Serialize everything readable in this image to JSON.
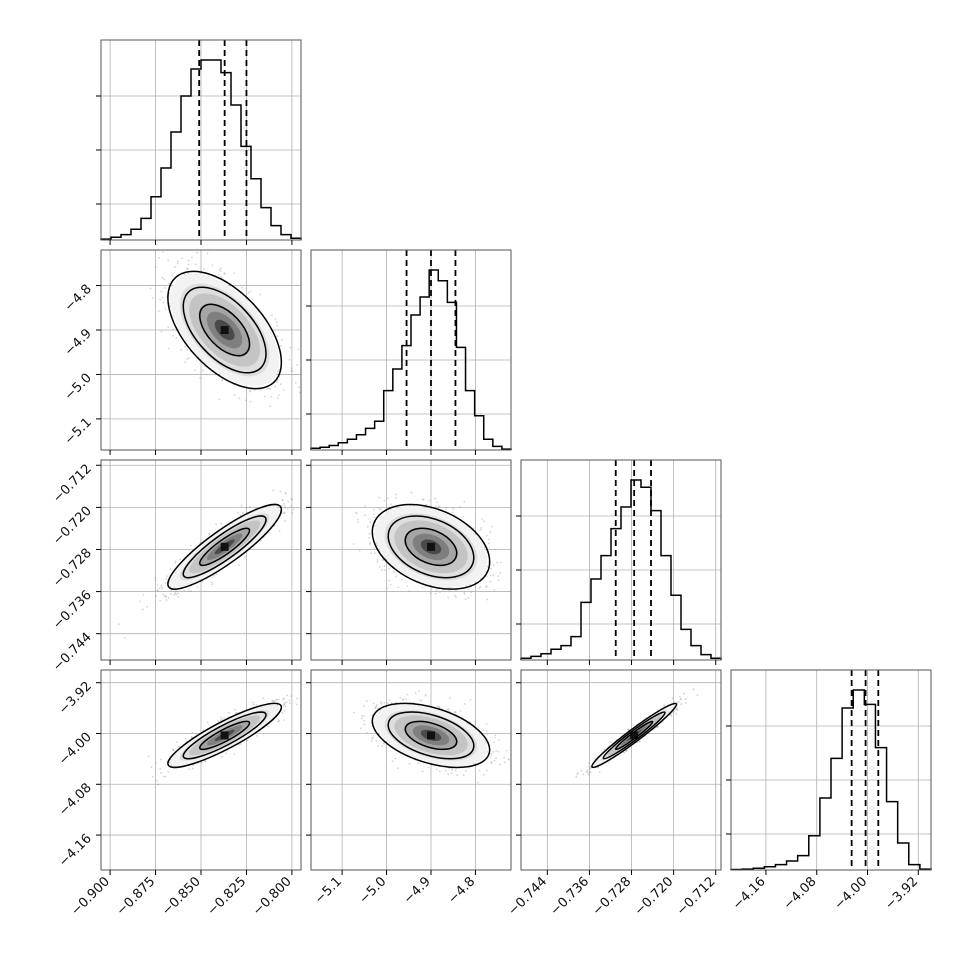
{
  "chart_data": {
    "type": "corner",
    "grid": true,
    "colors": {
      "line": "#000000",
      "grid": "#b0b0b0",
      "frame": "#555555",
      "scatter": "#888888"
    },
    "parameters": [
      {
        "ticks": [
          -0.9,
          -0.875,
          -0.85,
          -0.825,
          -0.8
        ],
        "tick_labels": [
          "−0.900",
          "−0.875",
          "−0.850",
          "−0.825",
          "−0.800"
        ],
        "range": [
          -0.905,
          -0.795
        ],
        "median": -0.837,
        "q16": -0.851,
        "q84": -0.825
      },
      {
        "ticks": [
          -5.1,
          -5.0,
          -4.9,
          -4.8
        ],
        "tick_labels": [
          "−5.1",
          "−5.0",
          "−4.9",
          "−4.8"
        ],
        "range": [
          -5.17,
          -4.72
        ],
        "median": -4.9,
        "q16": -4.955,
        "q84": -4.845
      },
      {
        "ticks": [
          -0.744,
          -0.736,
          -0.728,
          -0.72,
          -0.712
        ],
        "tick_labels": [
          "−0.744",
          "−0.736",
          "−0.728",
          "−0.720",
          "−0.712"
        ],
        "range": [
          -0.749,
          -0.711
        ],
        "median": -0.7275,
        "q16": -0.731,
        "q84": -0.7243
      },
      {
        "ticks": [
          -4.16,
          -4.08,
          -4.0,
          -3.92
        ],
        "tick_labels": [
          "−4.16",
          "−4.08",
          "−4.00",
          "−3.92"
        ],
        "range": [
          -4.215,
          -3.9
        ],
        "median": -4.003,
        "q16": -4.025,
        "q84": -3.983
      }
    ],
    "histograms": [
      {
        "param": 0,
        "counts": [
          0.5,
          1.5,
          3,
          6,
          12,
          24,
          40,
          60,
          80,
          95,
          100,
          100,
          93,
          75,
          52,
          34,
          18,
          8,
          3,
          1
        ]
      },
      {
        "param": 1,
        "counts": [
          1,
          1.5,
          2.5,
          4,
          6,
          8.5,
          12,
          16,
          33,
          45,
          58,
          75,
          85,
          100,
          94,
          82,
          57,
          33,
          19,
          6,
          2,
          0.5
        ]
      },
      {
        "param": 2,
        "counts": [
          1,
          2,
          3.5,
          6,
          8,
          13,
          32,
          45,
          58,
          73,
          85,
          100,
          96,
          83,
          58,
          36,
          17,
          8,
          3,
          1
        ]
      },
      {
        "param": 3,
        "counts": [
          0.3,
          0.5,
          1,
          1.8,
          3,
          5,
          8,
          19,
          40,
          62,
          90,
          100,
          92,
          68,
          38,
          15,
          3,
          0.5
        ]
      }
    ],
    "pairs": [
      {
        "x": 0,
        "y": 1,
        "rho": -0.55
      },
      {
        "x": 0,
        "y": 2,
        "rho": 0.88
      },
      {
        "x": 1,
        "y": 2,
        "rho": -0.35
      },
      {
        "x": 0,
        "y": 3,
        "rho": 0.88
      },
      {
        "x": 1,
        "y": 3,
        "rho": -0.45
      },
      {
        "x": 2,
        "y": 3,
        "rho": 0.97
      }
    ]
  }
}
